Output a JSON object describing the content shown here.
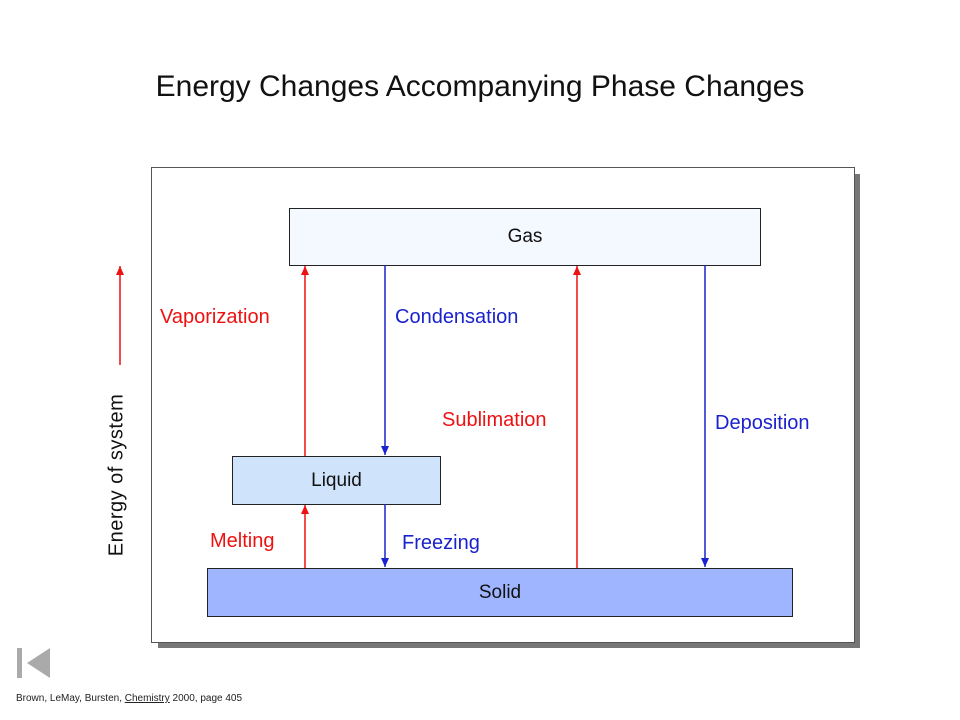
{
  "title": "Energy Changes Accompanying Phase Changes",
  "states": {
    "gas": "Gas",
    "liquid": "Liquid",
    "solid": "Solid"
  },
  "transitions": {
    "vaporization": "Vaporization",
    "condensation": "Condensation",
    "sublimation": "Sublimation",
    "deposition": "Deposition",
    "melting": "Melting",
    "freezing": "Freezing"
  },
  "axis_label": "Energy of system",
  "colors": {
    "endothermic": "#ee1111",
    "exothermic": "#1a22cc"
  },
  "citation": {
    "prefix": "Brown, LeMay, Bursten, ",
    "book": "Chemistry",
    "suffix": " 2000, page 405"
  },
  "nav_icon": "first-page-icon"
}
